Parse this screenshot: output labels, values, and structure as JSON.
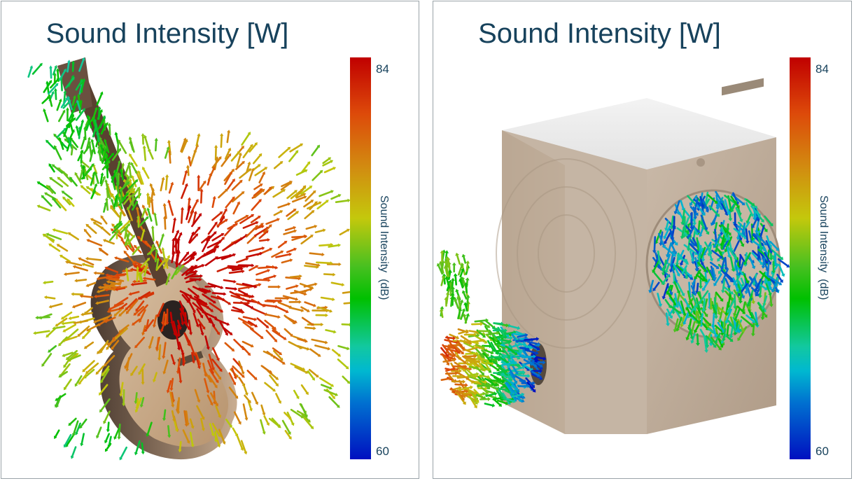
{
  "panels": [
    {
      "title": "Sound Intensity [W]",
      "object": "acoustic-guitar",
      "colorbar": {
        "max": "84",
        "min": "60",
        "label": "Sound Intensity  (dB)"
      }
    },
    {
      "title": "Sound Intensity [W]",
      "object": "washing-machine",
      "colorbar": {
        "max": "84",
        "min": "60",
        "label": "Sound Intensity  (dB)"
      }
    }
  ],
  "colors": {
    "title": "#17425c",
    "scale_high": "#c00000",
    "scale_mid": "#00c000",
    "scale_low": "#0010c0"
  }
}
